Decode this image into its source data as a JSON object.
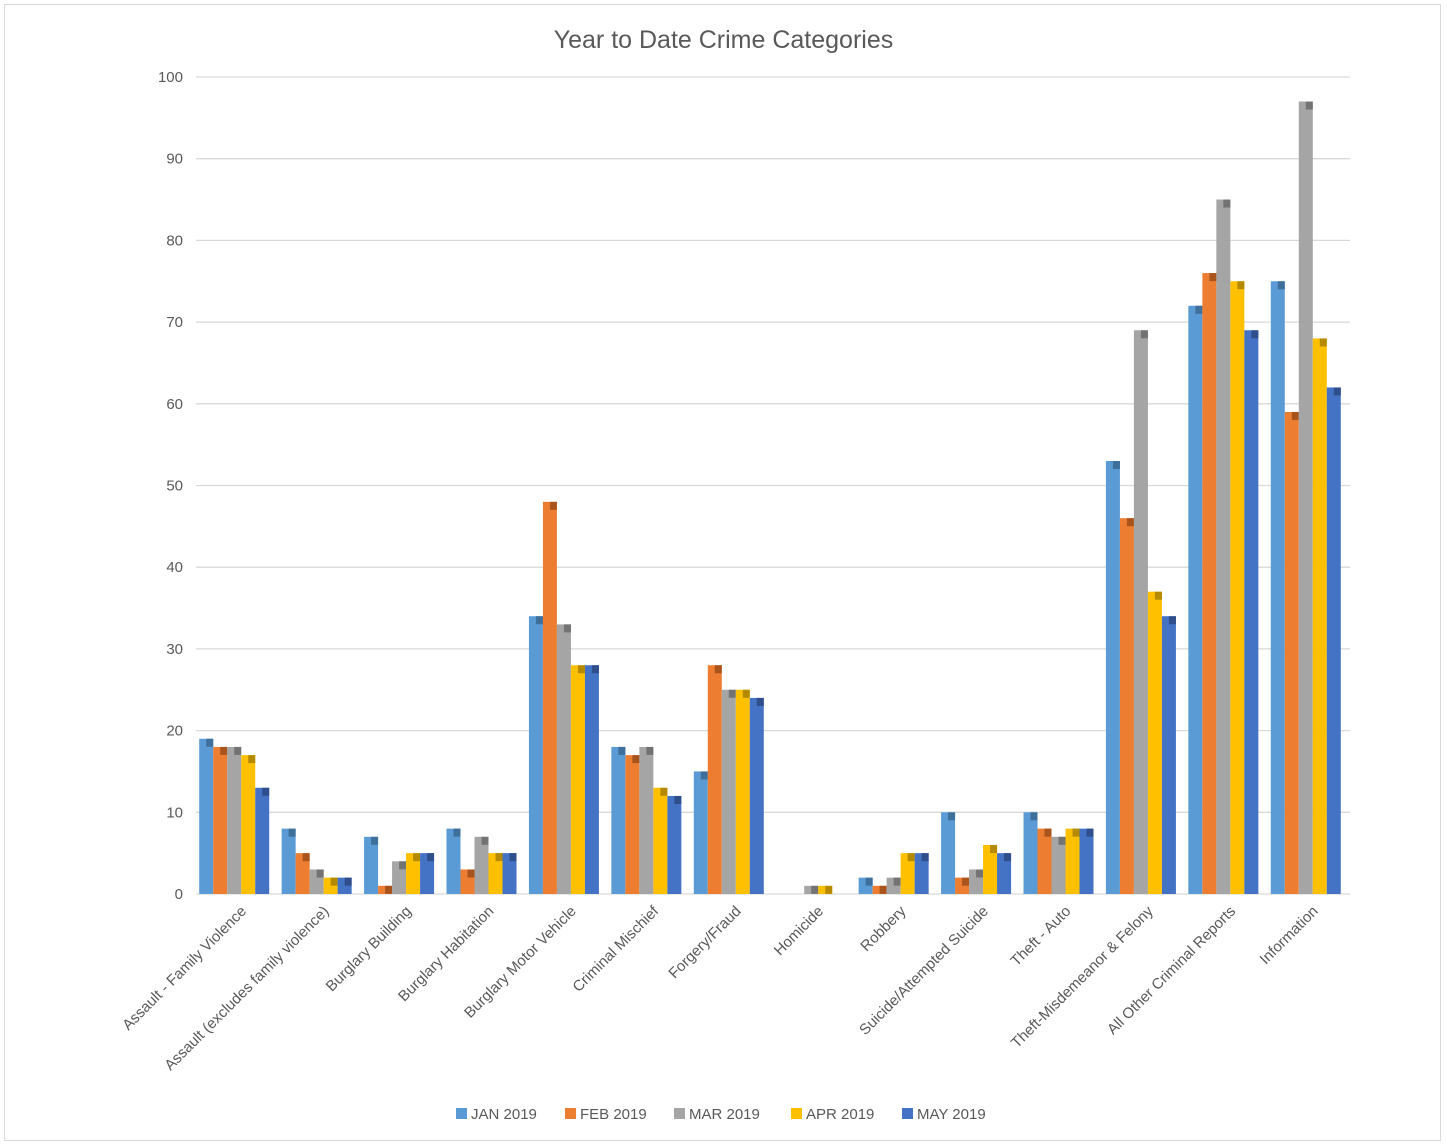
{
  "chart_data": {
    "type": "bar",
    "title": "Year to Date Crime Categories",
    "xlabel": "",
    "ylabel": "",
    "ylim": [
      0,
      100
    ],
    "yticks": [
      0,
      10,
      20,
      30,
      40,
      50,
      60,
      70,
      80,
      90,
      100
    ],
    "grid": true,
    "legend_position": "bottom",
    "categories": [
      "Assault - Family Violence",
      "Assault (excludes family violence)",
      "Burglary Building",
      "Burglary Habitation",
      "Burglary Motor Vehicle",
      "Criminal Mischief",
      "Forgery/Fraud",
      "Homicide",
      "Robbery",
      "Suicide/Attempted Suicide",
      "Theft - Auto",
      "Theft-Misdemeanor &  Felony",
      "All Other Criminal Reports",
      "Information"
    ],
    "series": [
      {
        "name": "JAN 2019",
        "color": "#5b9bd5",
        "side": "#3f6f9b",
        "values": [
          19,
          8,
          7,
          8,
          34,
          18,
          15,
          0,
          2,
          10,
          10,
          53,
          72,
          75
        ]
      },
      {
        "name": "FEB 2019",
        "color": "#ed7d31",
        "side": "#a9541d",
        "values": [
          18,
          5,
          1,
          3,
          48,
          17,
          28,
          0,
          1,
          2,
          8,
          46,
          76,
          59
        ]
      },
      {
        "name": "MAR 2019",
        "color": "#a5a5a5",
        "side": "#737373",
        "values": [
          18,
          3,
          4,
          7,
          33,
          18,
          25,
          1,
          2,
          3,
          7,
          69,
          85,
          97
        ]
      },
      {
        "name": "APR 2019",
        "color": "#ffc000",
        "side": "#b68a00",
        "values": [
          17,
          2,
          5,
          5,
          28,
          13,
          25,
          1,
          5,
          6,
          8,
          37,
          75,
          68
        ]
      },
      {
        "name": "MAY 2019",
        "color": "#4472c4",
        "side": "#2f4f8c",
        "values": [
          13,
          2,
          5,
          5,
          28,
          12,
          24,
          0,
          5,
          5,
          8,
          34,
          69,
          62
        ]
      }
    ]
  }
}
